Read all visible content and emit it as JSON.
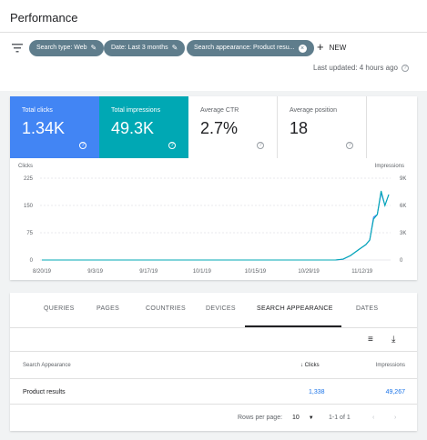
{
  "page": {
    "title": "Performance"
  },
  "filters": {
    "chips": [
      {
        "label": "Search type: Web"
      },
      {
        "label": "Date: Last 3 months"
      },
      {
        "label": "Search appearance: Product resu..."
      }
    ],
    "new_label": "NEW",
    "last_updated": "Last updated: 4 hours ago"
  },
  "metrics": [
    {
      "label": "Total clicks",
      "value": "1.34K"
    },
    {
      "label": "Total impressions",
      "value": "49.3K"
    },
    {
      "label": "Average CTR",
      "value": "2.7%"
    },
    {
      "label": "Average position",
      "value": "18"
    }
  ],
  "chart_data": {
    "type": "line",
    "x_ticks": [
      "8/20/19",
      "9/3/19",
      "9/17/19",
      "10/1/19",
      "10/15/19",
      "10/29/19",
      "11/12/19"
    ],
    "y_left": {
      "label": "Clicks",
      "ticks": [
        "225",
        "150",
        "75",
        "0"
      ],
      "lim": [
        0,
        225
      ]
    },
    "y_right": {
      "label": "Impressions",
      "ticks": [
        "9K",
        "6K",
        "3K",
        "0"
      ],
      "lim": [
        0,
        9000
      ]
    },
    "x": [
      "8/20/19",
      "8/27/19",
      "9/3/19",
      "9/10/19",
      "9/17/19",
      "9/24/19",
      "10/1/19",
      "10/8/19",
      "10/15/19",
      "10/22/19",
      "10/29/19",
      "11/2/19",
      "11/5/19",
      "11/7/19",
      "11/9/19",
      "11/11/19",
      "11/13/19",
      "11/14/19",
      "11/15/19",
      "11/16/19",
      "11/17/19",
      "11/18/19",
      "11/19/19"
    ],
    "series": [
      {
        "values": [
          0,
          0,
          0,
          0,
          0,
          0,
          0,
          0,
          0,
          0,
          0,
          0,
          0,
          2,
          12,
          28,
          42,
          55,
          118,
          125,
          185,
          150,
          180
        ],
        "color": "#4285f4"
      },
      {
        "values": [
          0,
          0,
          0,
          0,
          0,
          0,
          0,
          0,
          0,
          0,
          0,
          0,
          0,
          100,
          500,
          1100,
          1700,
          2200,
          4500,
          5000,
          7600,
          6000,
          7200
        ],
        "color": "#00a8b4"
      }
    ]
  },
  "table": {
    "tabs": [
      "QUERIES",
      "PAGES",
      "COUNTRIES",
      "DEVICES",
      "SEARCH APPEARANCE",
      "DATES"
    ],
    "active_tab": "SEARCH APPEARANCE",
    "headers": {
      "name": "Search Appearance",
      "clicks": "Clicks",
      "impressions": "Impressions"
    },
    "rows": [
      {
        "name": "Product results",
        "clicks": "1,338",
        "impressions": "49,267"
      }
    ],
    "pager": {
      "rows_per_page_label": "Rows per page:",
      "rows_per_page": "10",
      "range": "1-1 of 1"
    }
  }
}
